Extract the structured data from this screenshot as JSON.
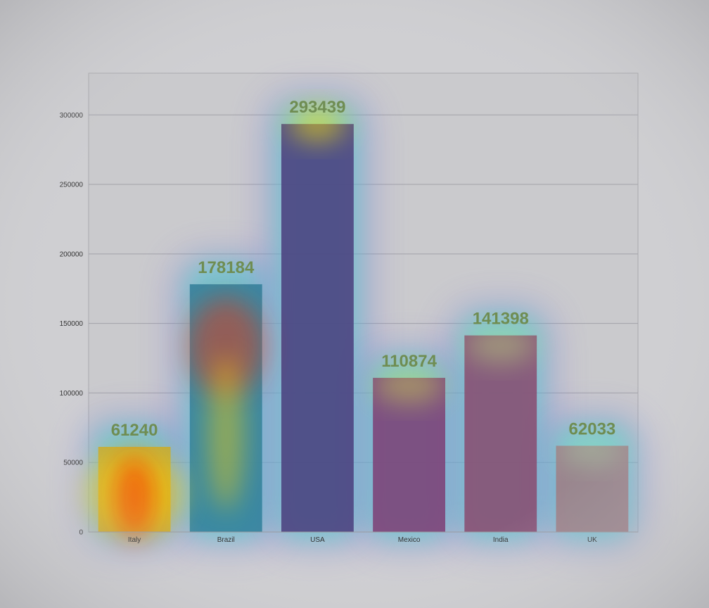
{
  "chart_data": {
    "type": "bar",
    "title": "",
    "xlabel": "",
    "ylabel": "",
    "categories": [
      "Italy",
      "Brazil",
      "USA",
      "Mexico",
      "India",
      "UK"
    ],
    "values": [
      61240,
      178184,
      293439,
      110874,
      141398,
      62033
    ],
    "ylim": [
      0,
      330000
    ],
    "yticks": [
      0,
      50000,
      100000,
      150000,
      200000,
      250000,
      300000
    ],
    "grid": true,
    "legend": "none",
    "colors": {
      "bars": [
        "#c8a92a",
        "#2f7f9a",
        "#4a3d7c",
        "#7e3d74",
        "#8a4a6e",
        "#a07b83"
      ],
      "data_label": "#6f8d52",
      "plot_background": "#c9c9cc",
      "page_background": "#cfcfd2",
      "heatmap_overlay": [
        "#ff0000",
        "#ffff00",
        "#40e0d0",
        "#6a5acd"
      ]
    }
  }
}
